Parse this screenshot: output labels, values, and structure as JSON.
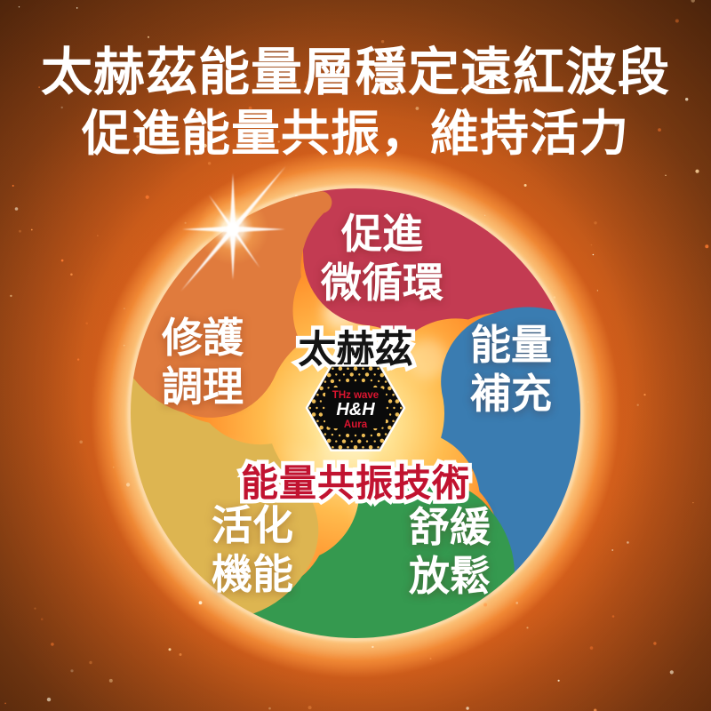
{
  "title": {
    "line1": "太赫茲能量層穩定遠紅波段",
    "line2": "促進能量共振，維持活力"
  },
  "wheel": {
    "center_title": "太赫茲",
    "technology_label": "能量共振技術",
    "technology_label_color": "#c11330",
    "badge": {
      "line1": "THz wave",
      "line2": "H&H",
      "line3": "Aura",
      "text_red": "#dd1530",
      "dot_gold": "#eebd55"
    },
    "segments": [
      {
        "name": "promote-microcirculation",
        "line1": "促進",
        "line2": "微循環",
        "color": "#c33b52"
      },
      {
        "name": "energy-replenishment",
        "line1": "能量",
        "line2": "補充",
        "color": "#3a7cb1"
      },
      {
        "name": "soothe-relax",
        "line1": "舒緩",
        "line2": "放鬆",
        "color": "#35994f"
      },
      {
        "name": "activate-functions",
        "line1": "活化",
        "line2": "機能",
        "color": "#ddb551"
      },
      {
        "name": "repair-conditioning",
        "line1": "修護",
        "line2": "調理",
        "color": "#e07b3d"
      }
    ]
  }
}
